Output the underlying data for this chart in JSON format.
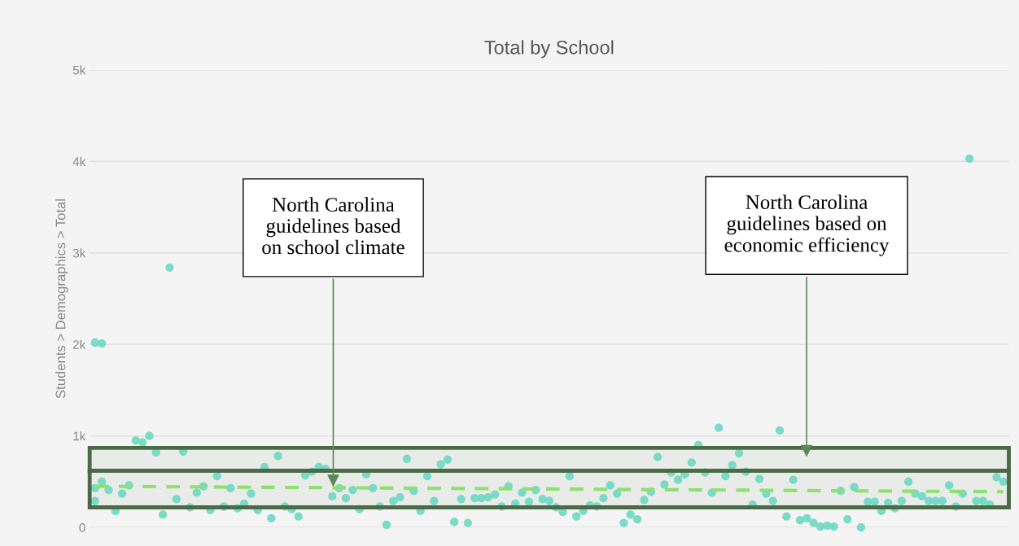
{
  "chart_data": {
    "type": "scatter",
    "title": "Total by School",
    "ylabel": "Students > Demographics > Total",
    "categories": [
      null,
      null,
      null,
      null,
      null,
      null,
      null,
      null,
      null,
      null,
      null,
      null,
      null,
      null,
      null,
      null,
      null,
      null,
      null,
      null,
      null,
      null,
      null,
      null,
      null,
      null,
      null,
      null,
      null,
      null,
      null,
      null,
      null,
      null,
      null,
      null,
      null,
      null,
      null,
      null,
      null,
      null,
      null,
      null,
      null,
      null,
      null,
      null,
      null,
      null,
      null,
      null,
      null,
      null,
      null,
      null,
      null,
      null,
      null,
      null,
      null,
      null,
      null,
      null,
      null,
      null,
      null,
      null,
      null,
      null,
      null,
      null,
      null,
      null,
      null,
      null,
      null,
      null,
      null,
      null,
      null,
      null,
      null,
      null,
      null,
      null,
      null,
      null,
      null,
      null,
      null,
      null,
      null,
      null,
      null,
      null,
      null,
      null,
      null,
      null,
      null,
      null,
      null,
      null,
      null,
      null,
      null,
      null,
      null,
      null,
      null,
      null,
      null,
      null,
      null,
      null,
      null,
      null,
      null,
      null,
      null,
      null,
      null,
      null,
      null,
      null,
      null,
      null,
      null,
      null,
      null,
      null,
      null,
      null,
      null
    ],
    "series": [
      {
        "color": "#6dd8c2",
        "values": [
          430,
          500,
          410,
          180,
          370,
          460,
          950,
          930,
          1000,
          820,
          140,
          2840,
          310,
          830,
          220,
          380,
          450,
          190,
          560,
          230,
          430,
          210,
          260,
          370,
          190,
          660,
          100,
          780,
          230,
          200,
          120,
          570,
          610,
          660,
          640,
          340,
          430,
          320,
          410,
          200,
          580,
          430,
          230,
          30,
          290,
          330,
          750,
          400,
          180,
          560,
          290,
          690,
          740,
          60,
          310,
          50,
          320,
          320,
          330,
          360,
          230,
          450,
          260,
          380,
          280,
          410,
          310,
          290,
          220,
          170,
          560,
          120,
          180,
          240,
          230,
          320,
          460,
          370,
          50,
          140,
          90,
          300,
          390,
          770,
          470,
          600,
          520,
          580,
          710,
          900,
          600,
          380,
          1090,
          560,
          680,
          810,
          610,
          250,
          530,
          370,
          290,
          1060,
          120,
          520,
          80,
          100,
          50,
          10,
          20,
          10,
          400,
          90,
          440,
          0,
          280,
          280,
          180,
          270,
          210,
          290,
          500,
          370,
          340,
          290,
          290,
          290,
          460,
          230,
          370,
          4030,
          290,
          290,
          250,
          550,
          500
        ]
      },
      {
        "color": "#6dd8c2",
        "values": [
          2020,
          2010,
          null,
          null,
          null,
          null,
          null,
          null,
          null,
          null,
          null,
          null,
          null,
          null,
          null,
          null,
          null,
          null,
          null,
          null,
          null,
          null,
          null,
          null,
          null,
          null,
          null,
          null,
          null,
          null,
          null,
          null,
          null,
          null,
          null,
          null,
          null,
          null,
          null,
          null,
          null,
          null,
          null,
          null,
          null,
          null,
          null,
          null,
          null,
          null,
          null,
          null,
          null,
          null,
          null,
          null,
          null,
          null,
          null,
          null,
          null,
          null,
          null,
          null,
          null,
          null,
          null,
          null,
          null,
          null,
          null,
          null,
          null,
          null,
          null,
          null,
          null,
          null,
          null,
          null,
          null,
          null,
          null,
          null,
          null,
          null,
          null,
          null,
          null,
          null,
          null,
          null,
          null,
          null,
          null,
          null,
          null,
          null,
          null,
          null,
          null,
          null,
          null,
          null,
          null,
          null,
          null,
          null,
          null,
          null,
          null,
          null,
          null,
          null,
          null,
          null,
          null,
          null,
          null,
          null,
          null,
          null,
          null,
          null,
          null,
          null,
          null,
          null,
          null,
          null,
          null,
          null,
          null,
          null,
          null
        ]
      },
      {
        "color": "#6dd8c2",
        "values": [
          290,
          null,
          null,
          null,
          null,
          null,
          null,
          null,
          null,
          null,
          null,
          null,
          null,
          null,
          null,
          null,
          null,
          null,
          null,
          null,
          null,
          null,
          null,
          null,
          null,
          null,
          null,
          null,
          null,
          null,
          null,
          null,
          null,
          null,
          null,
          null,
          null,
          null,
          null,
          null,
          null,
          null,
          null,
          null,
          null,
          null,
          null,
          null,
          null,
          null,
          null,
          null,
          null,
          null,
          null,
          null,
          null,
          null,
          null,
          null,
          null,
          null,
          null,
          null,
          null,
          null,
          null,
          null,
          null,
          null,
          null,
          null,
          null,
          null,
          null,
          null,
          null,
          null,
          null,
          null,
          null,
          null,
          null,
          null,
          null,
          null,
          null,
          null,
          null,
          null,
          null,
          null,
          null,
          null,
          null,
          null,
          null,
          null,
          null,
          null,
          null,
          null,
          null,
          null,
          null,
          null,
          null,
          null,
          null,
          null,
          null,
          null,
          null,
          null,
          null,
          null,
          null,
          null,
          null,
          null,
          null,
          null,
          null,
          null,
          null,
          null,
          null,
          null,
          null,
          null,
          null,
          null,
          null,
          null,
          null
        ]
      },
      {
        "type": "line",
        "line_style": "dashed",
        "marker": "none",
        "color": "#8ee070",
        "values": [
          450,
          null,
          null,
          null,
          null,
          null,
          null,
          null,
          null,
          null,
          null,
          null,
          null,
          null,
          null,
          null,
          null,
          null,
          null,
          null,
          null,
          null,
          null,
          null,
          null,
          null,
          null,
          null,
          null,
          null,
          null,
          null,
          null,
          null,
          null,
          null,
          null,
          null,
          null,
          null,
          null,
          null,
          null,
          null,
          null,
          null,
          null,
          null,
          null,
          null,
          null,
          null,
          null,
          null,
          null,
          null,
          null,
          null,
          null,
          null,
          null,
          null,
          null,
          null,
          null,
          null,
          null,
          null,
          null,
          null,
          null,
          null,
          null,
          null,
          null,
          null,
          null,
          null,
          null,
          null,
          null,
          null,
          null,
          null,
          null,
          null,
          null,
          null,
          null,
          null,
          null,
          null,
          null,
          null,
          null,
          null,
          null,
          null,
          null,
          null,
          null,
          null,
          null,
          null,
          null,
          null,
          null,
          null,
          null,
          null,
          null,
          null,
          null,
          null,
          null,
          null,
          null,
          null,
          null,
          null,
          null,
          null,
          null,
          null,
          null,
          null,
          null,
          null,
          null,
          null,
          null,
          null,
          null,
          null,
          390
        ]
      }
    ],
    "ylim": [
      0,
      5000
    ],
    "yticks": [
      0,
      {
        "value": 1000,
        "label": "1k"
      },
      {
        "value": 2000,
        "label": "2k"
      },
      {
        "value": 3000,
        "label": "3k"
      },
      {
        "value": 4000,
        "label": "4k"
      },
      {
        "value": 5000,
        "label": "5k"
      }
    ],
    "grid": "y",
    "marker": "circle",
    "legend": false,
    "tick_labels": "y",
    "bands": [
      {
        "axis": "y",
        "from": 620,
        "to": 870,
        "color": "#4a6b45",
        "label": "North Carolina\nguidelines based on\neconomic efficiency"
      },
      {
        "axis": "y",
        "from": 220,
        "to": 620,
        "color": "#4a6b45",
        "label": "North Carolina\nguidelines based\non school climate"
      }
    ]
  }
}
